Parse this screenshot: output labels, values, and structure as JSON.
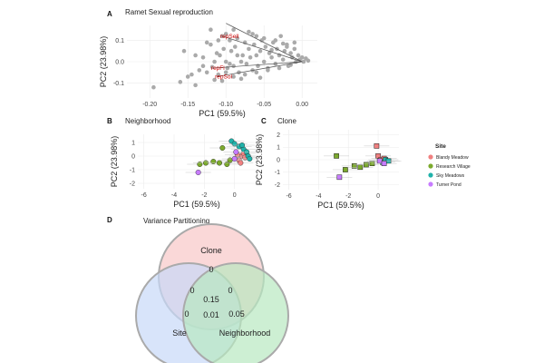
{
  "chart_data": [
    {
      "panel_letter": "A",
      "type": "scatter",
      "title": "Ramet Sexual reproduction",
      "xlabel": "PC1 (59.5%)",
      "ylabel": "PC2 (23.98%)",
      "xlim": [
        -0.23,
        0.02
      ],
      "ylim": [
        -0.17,
        0.17
      ],
      "xticks": [
        -0.2,
        -0.15,
        -0.1,
        -0.05,
        0.0
      ],
      "xtick_labels": [
        "-0.20",
        "-0.15",
        "-0.10",
        "-0.05",
        "0.00"
      ],
      "yticks": [
        -0.1,
        0.0,
        0.1
      ],
      "ytick_labels": [
        "-0.1",
        "0.0",
        "0.1"
      ],
      "grid": true,
      "points_color": "#aaaaaa",
      "points": [
        [
          -0.195,
          -0.12
        ],
        [
          -0.16,
          -0.095
        ],
        [
          -0.155,
          0.05
        ],
        [
          -0.15,
          -0.07
        ],
        [
          -0.145,
          -0.06
        ],
        [
          -0.14,
          -0.11
        ],
        [
          -0.135,
          -0.04
        ],
        [
          -0.13,
          0.02
        ],
        [
          -0.125,
          0.09
        ],
        [
          -0.12,
          0.08
        ],
        [
          -0.118,
          -0.025
        ],
        [
          -0.115,
          -0.085
        ],
        [
          -0.112,
          0.04
        ],
        [
          -0.11,
          -0.06
        ],
        [
          -0.108,
          0.03
        ],
        [
          -0.105,
          0.12
        ],
        [
          -0.103,
          0.06
        ],
        [
          -0.1,
          0.0
        ],
        [
          -0.098,
          -0.03
        ],
        [
          -0.095,
          0.1
        ],
        [
          -0.093,
          0.05
        ],
        [
          -0.09,
          -0.02
        ],
        [
          -0.088,
          0.07
        ],
        [
          -0.085,
          0.11
        ],
        [
          -0.083,
          -0.05
        ],
        [
          -0.08,
          0.0
        ],
        [
          -0.078,
          0.03
        ],
        [
          -0.075,
          0.09
        ],
        [
          -0.073,
          -0.01
        ],
        [
          -0.07,
          0.06
        ],
        [
          -0.068,
          0.02
        ],
        [
          -0.065,
          -0.04
        ],
        [
          -0.063,
          0.08
        ],
        [
          -0.06,
          0.03
        ],
        [
          -0.058,
          -0.02
        ],
        [
          -0.055,
          0.05
        ],
        [
          -0.053,
          0.1
        ],
        [
          -0.05,
          0.0
        ],
        [
          -0.048,
          0.07
        ],
        [
          -0.045,
          -0.03
        ],
        [
          -0.043,
          0.04
        ],
        [
          -0.04,
          0.02
        ],
        [
          -0.038,
          0.09
        ],
        [
          -0.035,
          -0.01
        ],
        [
          -0.033,
          0.06
        ],
        [
          -0.03,
          0.03
        ],
        [
          -0.028,
          0.12
        ],
        [
          -0.025,
          0.01
        ],
        [
          -0.023,
          0.05
        ],
        [
          -0.02,
          0.08
        ],
        [
          -0.018,
          -0.02
        ],
        [
          -0.015,
          0.04
        ],
        [
          -0.013,
          0.02
        ],
        [
          -0.01,
          0.06
        ],
        [
          -0.008,
          0.0
        ],
        [
          -0.005,
          0.03
        ],
        [
          -0.003,
          0.01
        ],
        [
          0.0,
          0.02
        ],
        [
          0.002,
          0.0
        ],
        [
          0.005,
          0.015
        ],
        [
          0.008,
          0.005
        ],
        [
          -0.105,
          -0.09
        ],
        [
          -0.12,
          0.15
        ],
        [
          -0.1,
          0.13
        ],
        [
          -0.09,
          0.15
        ],
        [
          -0.11,
          0.1
        ],
        [
          -0.13,
          -0.02
        ],
        [
          -0.14,
          0.03
        ],
        [
          -0.09,
          -0.07
        ],
        [
          -0.075,
          -0.06
        ],
        [
          -0.06,
          -0.05
        ],
        [
          -0.045,
          -0.04
        ],
        [
          -0.03,
          -0.03
        ],
        [
          -0.015,
          -0.015
        ],
        [
          -0.065,
          0.13
        ],
        [
          -0.07,
          0.14
        ],
        [
          -0.05,
          0.11
        ],
        [
          -0.085,
          0.03
        ],
        [
          -0.095,
          -0.01
        ],
        [
          -0.115,
          0.0
        ],
        [
          -0.125,
          -0.05
        ],
        [
          -0.035,
          0.1
        ],
        [
          -0.02,
          0.07
        ],
        [
          -0.01,
          0.09
        ],
        [
          -0.04,
          0.055
        ],
        [
          -0.055,
          -0.075
        ],
        [
          -0.08,
          -0.08
        ],
        [
          -0.1,
          -0.05
        ],
        [
          -0.06,
          0.12
        ],
        [
          -0.025,
          0.085
        ]
      ],
      "vectors": [
        {
          "label": "repSell",
          "end": [
            -0.105,
            0.12
          ],
          "show_label": true
        },
        {
          "label": "repFl",
          "end": [
            -0.117,
            -0.03
          ],
          "show_label": true
        },
        {
          "label": "repSol",
          "end": [
            -0.112,
            -0.07
          ],
          "show_label": true
        },
        {
          "label": "",
          "end": [
            -0.1,
            0.18
          ],
          "show_label": false
        }
      ],
      "vector_origin": [
        0.0,
        0.0
      ],
      "vector_label_color": "#cc0000"
    },
    {
      "panel_letter": "B",
      "type": "scatter",
      "title": "Neighborhood",
      "xlabel": "PC1 (59.5%)",
      "ylabel": "PC2 (23.98%)",
      "xlim": [
        -6.4,
        1.4
      ],
      "ylim": [
        -2.4,
        1.6
      ],
      "xticks": [
        -6,
        -4,
        -2,
        0
      ],
      "yticks": [
        -2,
        -1,
        0,
        1
      ],
      "grid": true,
      "groups": [
        {
          "name": "Blandy Meadow",
          "color": "#f08080",
          "points": [
            [
              0.2,
              0.1
            ],
            [
              0.5,
              0.0
            ],
            [
              0.3,
              -0.3
            ],
            [
              0.6,
              0.2
            ],
            [
              0.4,
              -0.5
            ],
            [
              0.7,
              -0.1
            ]
          ]
        },
        {
          "name": "Research Village",
          "color": "#7caa2d",
          "points": [
            [
              -2.3,
              -0.6
            ],
            [
              -1.9,
              -0.5
            ],
            [
              -1.4,
              -0.4
            ],
            [
              -0.8,
              0.6
            ],
            [
              -0.5,
              -0.6
            ],
            [
              -1.0,
              -0.5
            ],
            [
              -0.3,
              -0.3
            ]
          ]
        },
        {
          "name": "Sky Meadows",
          "color": "#20b2aa",
          "points": [
            [
              -0.2,
              1.1
            ],
            [
              0.0,
              0.9
            ],
            [
              0.3,
              0.7
            ],
            [
              0.6,
              0.5
            ],
            [
              0.8,
              0.3
            ],
            [
              0.9,
              0.0
            ],
            [
              1.0,
              -0.2
            ],
            [
              0.5,
              0.8
            ]
          ]
        },
        {
          "name": "Turner Pond",
          "color": "#c77cff",
          "points": [
            [
              -2.4,
              -1.2
            ],
            [
              0.0,
              -0.2
            ],
            [
              0.1,
              0.3
            ]
          ]
        }
      ]
    },
    {
      "panel_letter": "C",
      "type": "scatter",
      "title": "Clone",
      "xlabel": "PC1 (59.5%)",
      "ylabel": "PC2 (23.98%)",
      "xlim": [
        -6.4,
        1.4
      ],
      "ylim": [
        -2.4,
        2.4
      ],
      "xticks": [
        -6,
        -4,
        -2,
        0
      ],
      "yticks": [
        -2,
        -1,
        0,
        1,
        2
      ],
      "grid": true,
      "legend_title": "Site",
      "legend": [
        "Blandy Meadow",
        "Research Village",
        "Sky Meadows",
        "Turner Pond"
      ],
      "legend_colors": [
        "#f08080",
        "#7caa2d",
        "#20b2aa",
        "#c77cff"
      ],
      "groups": [
        {
          "name": "Blandy Meadow",
          "color": "#f08080",
          "points": [
            [
              -0.1,
              1.1
            ],
            [
              0.0,
              0.3
            ],
            [
              0.2,
              0.0
            ],
            [
              0.4,
              0.1
            ],
            [
              0.6,
              -0.1
            ]
          ]
        },
        {
          "name": "Research Village",
          "color": "#7caa2d",
          "points": [
            [
              -2.8,
              0.3
            ],
            [
              -2.2,
              -0.8
            ],
            [
              -1.6,
              -0.5
            ],
            [
              -1.2,
              -0.6
            ],
            [
              -0.8,
              -0.4
            ],
            [
              -0.4,
              -0.3
            ]
          ]
        },
        {
          "name": "Sky Meadows",
          "color": "#20b2aa",
          "points": [
            [
              0.3,
              -0.2
            ],
            [
              0.5,
              0.0
            ],
            [
              0.7,
              -0.1
            ]
          ]
        },
        {
          "name": "Turner Pond",
          "color": "#c77cff",
          "points": [
            [
              -2.6,
              -1.4
            ],
            [
              0.1,
              -0.1
            ],
            [
              0.4,
              -0.3
            ]
          ]
        }
      ]
    },
    {
      "panel_letter": "D",
      "type": "venn",
      "title": "Variance Partitioning",
      "sets": [
        {
          "name": "Clone",
          "only": "0",
          "fill": "#f8c8c8"
        },
        {
          "name": "Site",
          "only": "0",
          "fill": "#c8d8f8"
        },
        {
          "name": "Neighborhood",
          "only": "0.05",
          "fill": "#b8e8c0"
        }
      ],
      "overlaps": {
        "clone_site": "0",
        "clone_neighborhood": "0",
        "all_three": "0.15",
        "site_neighborhood": "0.01"
      }
    }
  ]
}
